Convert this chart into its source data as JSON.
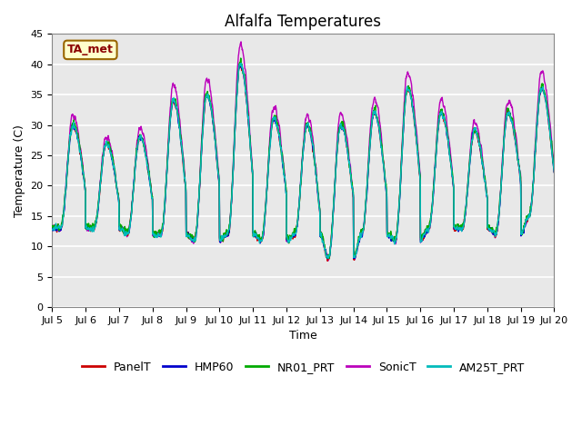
{
  "title": "Alfalfa Temperatures",
  "xlabel": "Time",
  "ylabel": "Temperature (C)",
  "ylim": [
    0,
    45
  ],
  "yticks": [
    0,
    5,
    10,
    15,
    20,
    25,
    30,
    35,
    40,
    45
  ],
  "annotation_text": "TA_met",
  "annotation_color": "#8B0000",
  "annotation_bg": "#FFFFCC",
  "annotation_border": "#996600",
  "series_colors": {
    "PanelT": "#CC0000",
    "HMP60": "#0000CC",
    "NR01_PRT": "#00AA00",
    "SonicT": "#BB00BB",
    "AM25T_PRT": "#00BBBB"
  },
  "start_day": 5,
  "end_day": 20,
  "background_color": "#E8E8E8",
  "grid_color": "#FFFFFF",
  "title_fontsize": 12,
  "axis_label_fontsize": 9,
  "tick_fontsize": 8,
  "legend_fontsize": 9,
  "lw": 1.0
}
